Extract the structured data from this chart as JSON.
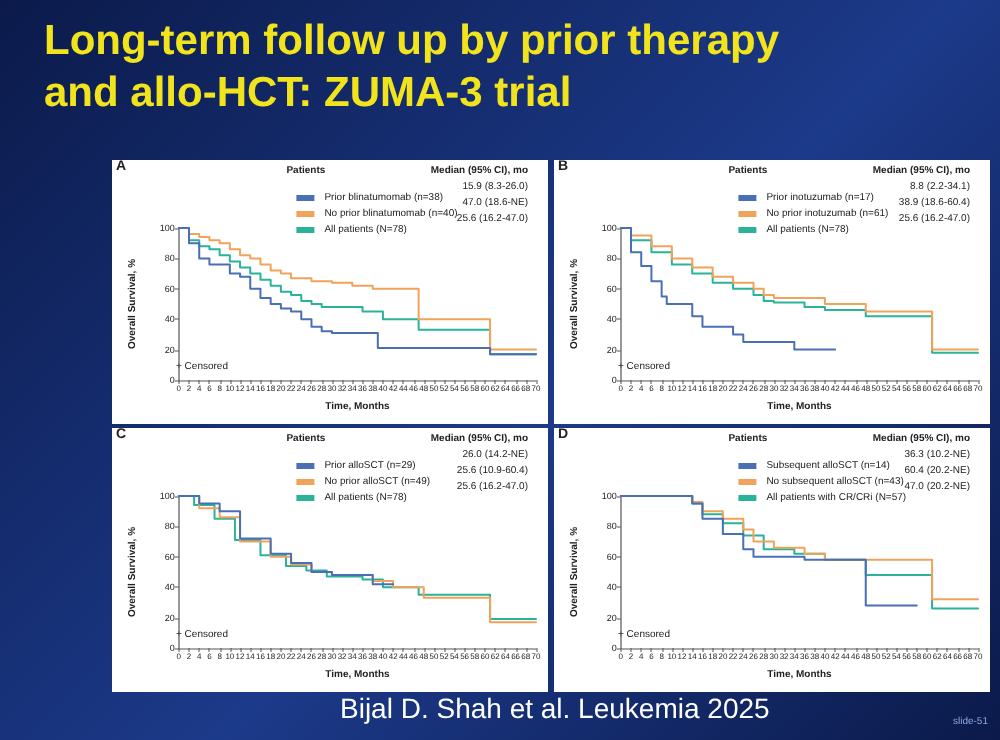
{
  "chart_data": [
    {
      "type": "other",
      "title": "Long-term follow up by prior therapy and allo-HCT: ZUMA-3 trial",
      "annotations": [
        "Bijal D. Shah et al. Leukemia 2025",
        "slide-51"
      ]
    },
    {
      "type": "step",
      "title": "A",
      "xlabel": "Time, Months",
      "ylabel": "Overall Survival, %",
      "xlim": [
        0,
        70
      ],
      "xticks": [
        0,
        2,
        4,
        6,
        8,
        10,
        12,
        14,
        16,
        18,
        20,
        22,
        24,
        26,
        28,
        30,
        32,
        34,
        36,
        38,
        40,
        42,
        44,
        46,
        48,
        50,
        52,
        54,
        56,
        58,
        60,
        62,
        64,
        66,
        68,
        70
      ],
      "ylim": [
        0,
        100
      ],
      "yticks": [
        0,
        20,
        40,
        60,
        80,
        100
      ],
      "legend": "top right",
      "legend_title": "Patients",
      "annotations": [
        "Median (95% CI), mo",
        "15.9 (8.3-26.0)",
        "47.0 (18.6-NE)",
        "25.6 (16.2-47.0)",
        "+ Censored"
      ],
      "series": [
        {
          "name": "Prior blinatumomab (n=38)",
          "color": "#4a6fb5",
          "x": [
            0,
            2,
            4,
            6,
            10,
            12,
            14,
            16,
            18,
            20,
            22,
            24,
            26,
            28,
            30,
            39,
            60,
            61,
            70
          ],
          "values": [
            100,
            90,
            80,
            76,
            70,
            68,
            60,
            54,
            50,
            47,
            45,
            40,
            35,
            32,
            31,
            21,
            21,
            17,
            17
          ]
        },
        {
          "name": "No prior blinatumomab (n=40)",
          "color": "#f0a35a",
          "x": [
            0,
            2,
            4,
            6,
            8,
            10,
            12,
            14,
            16,
            18,
            20,
            22,
            26,
            30,
            34,
            38,
            47,
            61,
            70
          ],
          "values": [
            100,
            96,
            94,
            92,
            90,
            86,
            82,
            80,
            76,
            72,
            70,
            67,
            65,
            64,
            62,
            60,
            40,
            20,
            20
          ]
        },
        {
          "name": "All patients (N=78)",
          "color": "#2bb39a",
          "x": [
            0,
            2,
            4,
            6,
            8,
            10,
            12,
            14,
            16,
            18,
            20,
            22,
            24,
            26,
            28,
            36,
            40,
            47,
            61,
            70
          ],
          "values": [
            100,
            92,
            88,
            86,
            82,
            78,
            74,
            70,
            66,
            62,
            58,
            56,
            52,
            50,
            48,
            45,
            40,
            33,
            17,
            17
          ]
        }
      ]
    },
    {
      "type": "step",
      "title": "B",
      "xlabel": "Time, Months",
      "ylabel": "Overall Survival, %",
      "xlim": [
        0,
        70
      ],
      "xticks": [
        0,
        2,
        4,
        6,
        8,
        10,
        12,
        14,
        16,
        18,
        20,
        22,
        24,
        26,
        28,
        30,
        32,
        34,
        36,
        38,
        40,
        42,
        44,
        46,
        48,
        50,
        52,
        54,
        56,
        58,
        60,
        62,
        64,
        66,
        68,
        70
      ],
      "ylim": [
        0,
        100
      ],
      "yticks": [
        0,
        20,
        40,
        60,
        80,
        100
      ],
      "legend": "top right",
      "legend_title": "Patients",
      "annotations": [
        "Median (95% CI), mo",
        "8.8 (2.2-34.1)",
        "38.9 (18.6-60.4)",
        "25.6 (16.2-47.0)",
        "+ Censored"
      ],
      "series": [
        {
          "name": "Prior inotuzumab (n=17)",
          "color": "#4a6fb5",
          "x": [
            0,
            2,
            4,
            6,
            8,
            9,
            14,
            16,
            22,
            24,
            34,
            42
          ],
          "values": [
            100,
            84,
            75,
            65,
            55,
            50,
            42,
            35,
            30,
            25,
            20,
            20
          ]
        },
        {
          "name": "No prior inotuzumab (n=61)",
          "color": "#f0a35a",
          "x": [
            0,
            2,
            6,
            10,
            14,
            18,
            22,
            26,
            28,
            30,
            40,
            48,
            61,
            70
          ],
          "values": [
            100,
            95,
            88,
            80,
            74,
            68,
            64,
            60,
            56,
            54,
            50,
            45,
            20,
            20
          ]
        },
        {
          "name": "All patients (N=78)",
          "color": "#2bb39a",
          "x": [
            0,
            2,
            6,
            10,
            14,
            18,
            22,
            26,
            28,
            30,
            36,
            40,
            48,
            61,
            70
          ],
          "values": [
            100,
            92,
            84,
            76,
            70,
            64,
            60,
            56,
            52,
            51,
            48,
            46,
            42,
            18,
            18
          ]
        }
      ]
    },
    {
      "type": "step",
      "title": "C",
      "xlabel": "Time, Months",
      "ylabel": "Overall Survival, %",
      "xlim": [
        0,
        70
      ],
      "xticks": [
        0,
        2,
        4,
        6,
        8,
        10,
        12,
        14,
        16,
        18,
        20,
        22,
        24,
        26,
        28,
        30,
        32,
        34,
        36,
        38,
        40,
        42,
        44,
        46,
        48,
        50,
        52,
        54,
        56,
        58,
        60,
        62,
        64,
        66,
        68,
        70
      ],
      "ylim": [
        0,
        100
      ],
      "yticks": [
        0,
        20,
        40,
        60,
        80,
        100
      ],
      "legend": "top right",
      "legend_title": "Patients",
      "annotations": [
        "Median (95% CI), mo",
        "26.0 (14.2-NE)",
        "25.6 (10.9-60.4)",
        "25.6 (16.2-47.0)",
        "+ Censored"
      ],
      "series": [
        {
          "name": "Prior alloSCT (n=29)",
          "color": "#4a6fb5",
          "x": [
            0,
            4,
            8,
            12,
            18,
            22,
            26,
            30,
            38,
            42
          ],
          "values": [
            100,
            95,
            90,
            72,
            62,
            56,
            50,
            48,
            42,
            42
          ]
        },
        {
          "name": "No prior alloSCT (n=49)",
          "color": "#f0a35a",
          "x": [
            0,
            4,
            8,
            12,
            18,
            22,
            26,
            30,
            38,
            42,
            48,
            61,
            70
          ],
          "values": [
            100,
            92,
            86,
            70,
            60,
            55,
            50,
            48,
            44,
            40,
            33,
            17,
            17
          ]
        },
        {
          "name": "All patients (N=78)",
          "color": "#2bb39a",
          "x": [
            0,
            3,
            7,
            11,
            16,
            21,
            25,
            29,
            36,
            40,
            47,
            61,
            70
          ],
          "values": [
            100,
            94,
            85,
            71,
            61,
            54,
            51,
            47,
            45,
            40,
            35,
            19,
            19
          ]
        }
      ]
    },
    {
      "type": "step",
      "title": "D",
      "xlabel": "Time, Months",
      "ylabel": "Overall Survival, %",
      "xlim": [
        0,
        70
      ],
      "xticks": [
        0,
        2,
        4,
        6,
        8,
        10,
        12,
        14,
        16,
        18,
        20,
        22,
        24,
        26,
        28,
        30,
        32,
        34,
        36,
        38,
        40,
        42,
        44,
        46,
        48,
        50,
        52,
        54,
        56,
        58,
        60,
        62,
        64,
        66,
        68,
        70
      ],
      "ylim": [
        0,
        100
      ],
      "yticks": [
        0,
        20,
        40,
        60,
        80,
        100
      ],
      "legend": "top right",
      "legend_title": "Patients",
      "annotations": [
        "Median (95% CI), mo",
        "36.3 (10.2-NE)",
        "60.4 (20.2-NE)",
        "47.0 (20.2-NE)",
        "+ Censored"
      ],
      "series": [
        {
          "name": "Subsequent alloSCT (n=14)",
          "color": "#4a6fb5",
          "x": [
            0,
            14,
            16,
            20,
            24,
            26,
            36,
            48,
            58
          ],
          "values": [
            100,
            95,
            85,
            75,
            65,
            60,
            58,
            28,
            28
          ]
        },
        {
          "name": "No subsequent alloSCT (n=43)",
          "color": "#f0a35a",
          "x": [
            0,
            14,
            16,
            20,
            24,
            26,
            30,
            36,
            40,
            61,
            70
          ],
          "values": [
            100,
            96,
            90,
            85,
            78,
            70,
            66,
            62,
            58,
            32,
            32
          ]
        },
        {
          "name": "All patients with CR/CRi (N=57)",
          "color": "#2bb39a",
          "x": [
            0,
            14,
            16,
            20,
            24,
            28,
            34,
            40,
            48,
            61,
            70
          ],
          "values": [
            100,
            95,
            88,
            82,
            74,
            65,
            62,
            58,
            48,
            26,
            26
          ]
        }
      ]
    }
  ]
}
